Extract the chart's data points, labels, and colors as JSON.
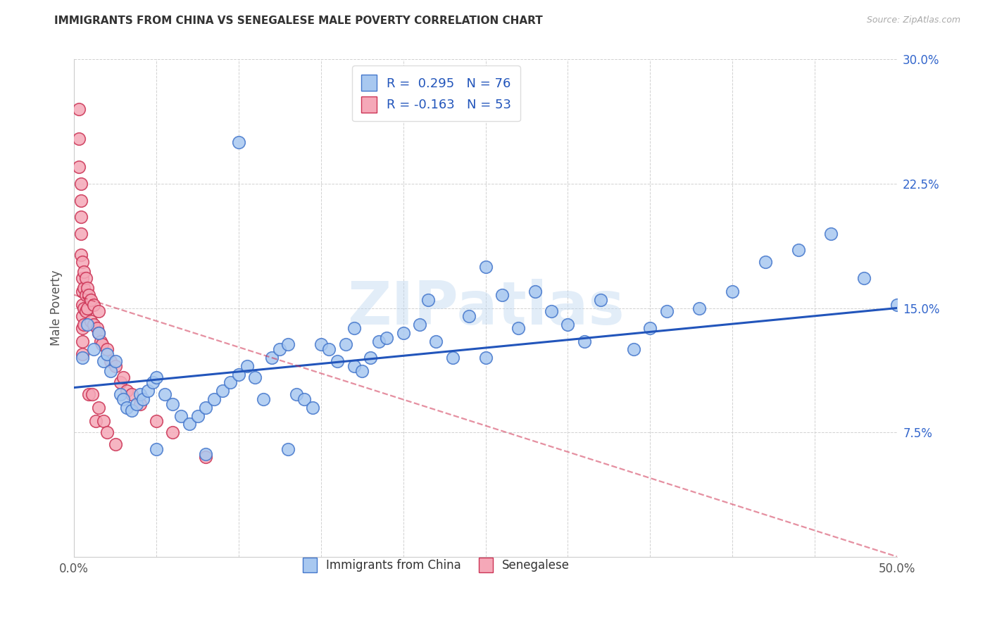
{
  "title": "IMMIGRANTS FROM CHINA VS SENEGALESE MALE POVERTY CORRELATION CHART",
  "source": "Source: ZipAtlas.com",
  "ylabel": "Male Poverty",
  "xlim": [
    0.0,
    0.5
  ],
  "ylim": [
    0.0,
    0.3
  ],
  "xticks": [
    0.0,
    0.05,
    0.1,
    0.15,
    0.2,
    0.25,
    0.3,
    0.35,
    0.4,
    0.45,
    0.5
  ],
  "yticks": [
    0.0,
    0.075,
    0.15,
    0.225,
    0.3
  ],
  "ytick_labels": [
    "",
    "7.5%",
    "15.0%",
    "22.5%",
    "30.0%"
  ],
  "color_china": "#a8c8f0",
  "color_china_edge": "#4477cc",
  "color_senegal": "#f5a8b8",
  "color_senegal_edge": "#cc3355",
  "color_line_china": "#2255bb",
  "color_line_senegal": "#cc2244",
  "watermark": "ZIPatlas",
  "china_r": 0.295,
  "china_n": 76,
  "senegal_r": -0.163,
  "senegal_n": 53,
  "china_line_x": [
    0.0,
    0.5
  ],
  "china_line_y": [
    0.102,
    0.15
  ],
  "senegal_line_x": [
    0.0,
    0.5
  ],
  "senegal_line_y": [
    0.158,
    0.0
  ],
  "china_x": [
    0.005,
    0.008,
    0.012,
    0.015,
    0.018,
    0.02,
    0.022,
    0.025,
    0.028,
    0.03,
    0.032,
    0.035,
    0.038,
    0.04,
    0.042,
    0.045,
    0.048,
    0.05,
    0.055,
    0.06,
    0.065,
    0.07,
    0.075,
    0.08,
    0.085,
    0.09,
    0.095,
    0.1,
    0.105,
    0.11,
    0.115,
    0.12,
    0.125,
    0.13,
    0.135,
    0.14,
    0.145,
    0.15,
    0.155,
    0.16,
    0.165,
    0.17,
    0.175,
    0.18,
    0.185,
    0.19,
    0.2,
    0.21,
    0.215,
    0.22,
    0.23,
    0.24,
    0.25,
    0.26,
    0.27,
    0.28,
    0.29,
    0.3,
    0.31,
    0.32,
    0.34,
    0.36,
    0.38,
    0.4,
    0.42,
    0.44,
    0.46,
    0.48,
    0.5,
    0.35,
    0.25,
    0.17,
    0.1,
    0.05,
    0.08,
    0.13
  ],
  "china_y": [
    0.12,
    0.14,
    0.125,
    0.135,
    0.118,
    0.122,
    0.112,
    0.118,
    0.098,
    0.095,
    0.09,
    0.088,
    0.092,
    0.098,
    0.095,
    0.1,
    0.105,
    0.108,
    0.098,
    0.092,
    0.085,
    0.08,
    0.085,
    0.09,
    0.095,
    0.1,
    0.105,
    0.11,
    0.115,
    0.108,
    0.095,
    0.12,
    0.125,
    0.128,
    0.098,
    0.095,
    0.09,
    0.128,
    0.125,
    0.118,
    0.128,
    0.115,
    0.112,
    0.12,
    0.13,
    0.132,
    0.135,
    0.14,
    0.155,
    0.13,
    0.12,
    0.145,
    0.175,
    0.158,
    0.138,
    0.16,
    0.148,
    0.14,
    0.13,
    0.155,
    0.125,
    0.148,
    0.15,
    0.16,
    0.178,
    0.185,
    0.195,
    0.168,
    0.152,
    0.138,
    0.12,
    0.138,
    0.25,
    0.065,
    0.062,
    0.065
  ],
  "senegal_x": [
    0.003,
    0.003,
    0.003,
    0.004,
    0.004,
    0.004,
    0.004,
    0.004,
    0.005,
    0.005,
    0.005,
    0.005,
    0.005,
    0.005,
    0.005,
    0.005,
    0.006,
    0.006,
    0.006,
    0.006,
    0.007,
    0.007,
    0.007,
    0.008,
    0.008,
    0.009,
    0.009,
    0.01,
    0.01,
    0.011,
    0.012,
    0.012,
    0.013,
    0.014,
    0.015,
    0.015,
    0.015,
    0.016,
    0.017,
    0.018,
    0.02,
    0.02,
    0.022,
    0.025,
    0.025,
    0.028,
    0.03,
    0.032,
    0.035,
    0.04,
    0.05,
    0.06,
    0.08
  ],
  "senegal_y": [
    0.27,
    0.252,
    0.235,
    0.225,
    0.215,
    0.205,
    0.195,
    0.182,
    0.178,
    0.168,
    0.16,
    0.152,
    0.145,
    0.138,
    0.13,
    0.122,
    0.172,
    0.162,
    0.15,
    0.14,
    0.168,
    0.158,
    0.148,
    0.162,
    0.15,
    0.158,
    0.098,
    0.155,
    0.142,
    0.098,
    0.152,
    0.14,
    0.082,
    0.138,
    0.148,
    0.135,
    0.09,
    0.13,
    0.128,
    0.082,
    0.125,
    0.075,
    0.118,
    0.115,
    0.068,
    0.105,
    0.108,
    0.1,
    0.098,
    0.092,
    0.082,
    0.075,
    0.06
  ]
}
